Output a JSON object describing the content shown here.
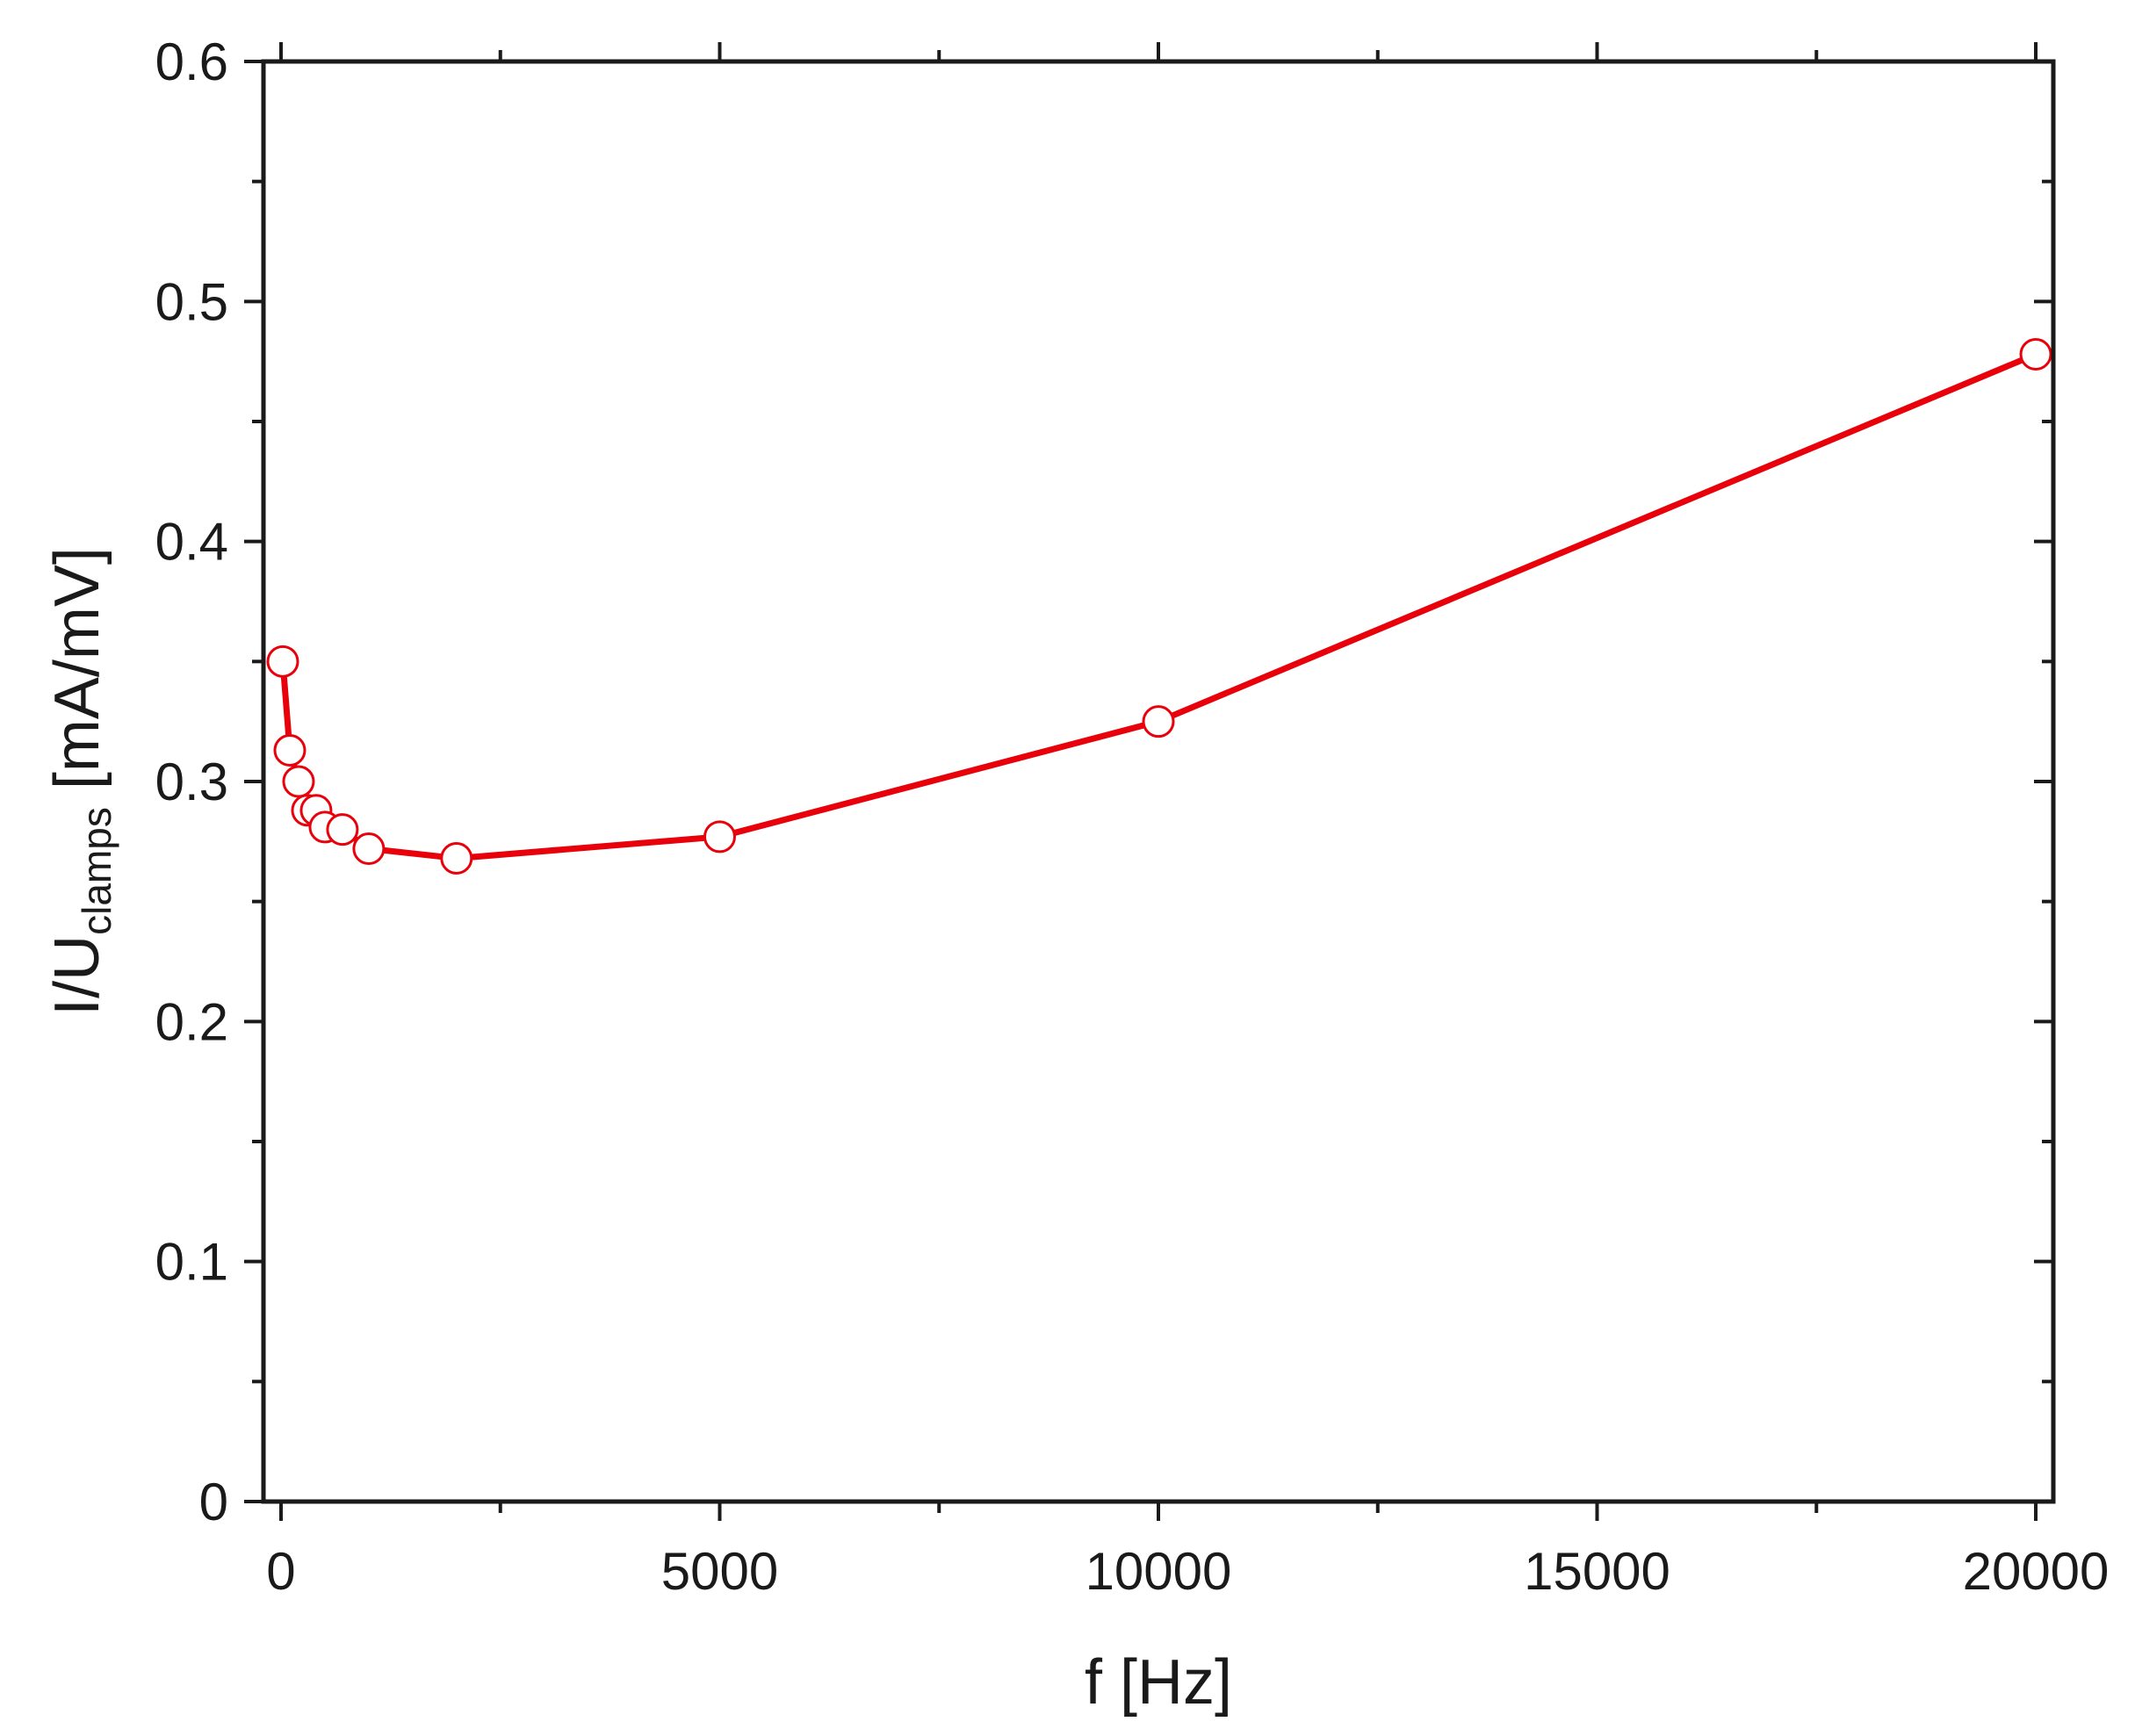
{
  "chart_data": {
    "type": "line",
    "title": "",
    "xlabel": "f [Hz]",
    "ylabel": {
      "prefix": "I/U",
      "subscript": "clamps",
      "suffix": " [mA/mV]"
    },
    "xlim": [
      -200,
      20200
    ],
    "ylim": [
      0,
      0.6
    ],
    "x_ticks": [
      0,
      5000,
      10000,
      15000,
      20000
    ],
    "x_tick_labels": [
      "0",
      "5000",
      "10000",
      "15000",
      "20000"
    ],
    "x_minor_ticks": [
      2500,
      7500,
      12500,
      17500
    ],
    "y_ticks": [
      0,
      0.1,
      0.2,
      0.3,
      0.4,
      0.5,
      0.6
    ],
    "y_tick_labels": [
      "0",
      "0.1",
      "0.2",
      "0.3",
      "0.4",
      "0.5",
      "0.6"
    ],
    "y_minor_ticks": [
      0.05,
      0.15,
      0.25,
      0.35,
      0.45,
      0.55
    ],
    "grid": false,
    "legend": "none",
    "series": [
      {
        "color": "#e8000b",
        "marker": "open-circle",
        "x": [
          20,
          100,
          200,
          300,
          400,
          500,
          700,
          1000,
          2000,
          5000,
          10000,
          20000
        ],
        "y": [
          0.35,
          0.313,
          0.3,
          0.288,
          0.288,
          0.281,
          0.28,
          0.272,
          0.268,
          0.277,
          0.325,
          0.478
        ]
      }
    ]
  }
}
